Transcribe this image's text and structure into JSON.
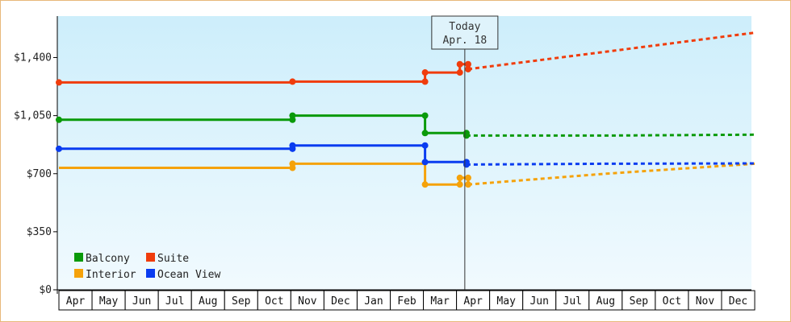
{
  "chart_data": {
    "type": "line",
    "colors": {
      "Balcony": "#0a9a0a",
      "Suite": "#f03c0c",
      "Interior": "#f5a20a",
      "Ocean View": "#0a3cf0",
      "plot_bg_top": "#cdeefb",
      "plot_bg_bottom": "#f1fafe",
      "border": "#e8b87a"
    },
    "ylim": [
      0,
      1650
    ],
    "y_ticks": [
      {
        "value": 0,
        "label": "$0"
      },
      {
        "value": 350,
        "label": "$350"
      },
      {
        "value": 700,
        "label": "$700"
      },
      {
        "value": 1050,
        "label": "$1,050"
      },
      {
        "value": 1400,
        "label": "$1,400"
      }
    ],
    "months": [
      "Apr",
      "May",
      "Jun",
      "Jul",
      "Aug",
      "Sep",
      "Oct",
      "Nov",
      "Dec",
      "Jan",
      "Feb",
      "Mar",
      "Apr",
      "May",
      "Jun",
      "Jul",
      "Aug",
      "Sep",
      "Oct",
      "Nov",
      "Dec"
    ],
    "today": {
      "line1": "Today",
      "line2": "Apr. 18",
      "x": 12.25
    },
    "legend": {
      "position": "bottom-left",
      "order": [
        "Balcony",
        "Suite",
        "Interior",
        "Ocean View"
      ]
    },
    "series": [
      {
        "name": "Balcony",
        "points": [
          [
            0,
            1025
          ],
          [
            7.05,
            1025
          ],
          [
            7.05,
            1050
          ],
          [
            11.05,
            1050
          ],
          [
            11.05,
            945
          ],
          [
            12.3,
            945
          ],
          [
            12.3,
            930
          ]
        ],
        "markers": [
          [
            0,
            1025
          ],
          [
            7.05,
            1025
          ],
          [
            7.05,
            1050
          ],
          [
            11.05,
            1050
          ],
          [
            11.05,
            945
          ],
          [
            12.3,
            945
          ],
          [
            12.3,
            930
          ]
        ],
        "forecast": [
          [
            12.3,
            930
          ],
          [
            16.5,
            930
          ],
          [
            21,
            935
          ]
        ]
      },
      {
        "name": "Suite",
        "points": [
          [
            0,
            1250
          ],
          [
            7.05,
            1250
          ],
          [
            7.05,
            1255
          ],
          [
            11.05,
            1255
          ],
          [
            11.05,
            1310
          ],
          [
            12.1,
            1310
          ],
          [
            12.1,
            1360
          ],
          [
            12.35,
            1360
          ],
          [
            12.35,
            1330
          ]
        ],
        "markers": [
          [
            0,
            1250
          ],
          [
            7.05,
            1255
          ],
          [
            11.05,
            1255
          ],
          [
            11.05,
            1310
          ],
          [
            12.1,
            1310
          ],
          [
            12.1,
            1360
          ],
          [
            12.35,
            1360
          ],
          [
            12.35,
            1330
          ]
        ],
        "forecast": [
          [
            12.35,
            1330
          ],
          [
            16.5,
            1435
          ],
          [
            21,
            1550
          ]
        ]
      },
      {
        "name": "Interior",
        "points": [
          [
            0,
            735
          ],
          [
            7.05,
            735
          ],
          [
            7.05,
            760
          ],
          [
            11.05,
            760
          ],
          [
            11.05,
            635
          ],
          [
            12.1,
            635
          ],
          [
            12.1,
            675
          ],
          [
            12.35,
            675
          ],
          [
            12.35,
            635
          ]
        ],
        "markers": [
          [
            7.05,
            735
          ],
          [
            7.05,
            760
          ],
          [
            11.05,
            635
          ],
          [
            12.1,
            635
          ],
          [
            12.1,
            675
          ],
          [
            12.35,
            675
          ],
          [
            12.35,
            635
          ]
        ],
        "forecast": [
          [
            12.35,
            635
          ],
          [
            16.5,
            700
          ],
          [
            21,
            760
          ]
        ]
      },
      {
        "name": "Ocean View",
        "points": [
          [
            0,
            850
          ],
          [
            7.05,
            850
          ],
          [
            7.05,
            870
          ],
          [
            11.05,
            870
          ],
          [
            11.05,
            770
          ],
          [
            12.3,
            770
          ],
          [
            12.3,
            755
          ]
        ],
        "markers": [
          [
            0,
            850
          ],
          [
            7.05,
            850
          ],
          [
            7.05,
            870
          ],
          [
            11.05,
            870
          ],
          [
            11.05,
            770
          ],
          [
            12.3,
            770
          ],
          [
            12.3,
            755
          ]
        ],
        "forecast": [
          [
            12.3,
            755
          ],
          [
            16.5,
            760
          ],
          [
            21,
            762
          ]
        ]
      }
    ]
  }
}
